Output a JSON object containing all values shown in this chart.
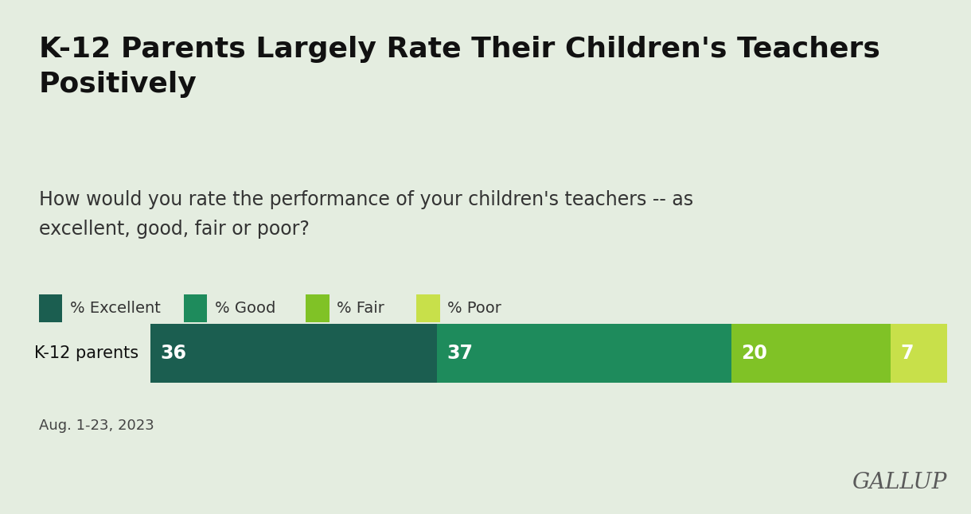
{
  "title": "K-12 Parents Largely Rate Their Children's Teachers\nPositively",
  "question": "How would you rate the performance of your children's teachers -- as\nexcellent, good, fair or poor?",
  "date_note": "Aug. 1-23, 2023",
  "gallup_text": "GALLUP",
  "category_label": "K-12 parents",
  "values": [
    36,
    37,
    20,
    7
  ],
  "colors": [
    "#1b5e50",
    "#1e8b5c",
    "#80c226",
    "#c8e04a"
  ],
  "legend_labels": [
    "% Excellent",
    "% Good",
    "% Fair",
    "% Poor"
  ],
  "background_color": "#e4ede0",
  "bar_text_color": "#ffffff",
  "title_fontsize": 26,
  "question_fontsize": 17,
  "legend_fontsize": 14,
  "bar_value_fontsize": 17,
  "category_fontsize": 15,
  "note_fontsize": 13,
  "gallup_fontsize": 20,
  "gallup_color": "#5a5a5a"
}
